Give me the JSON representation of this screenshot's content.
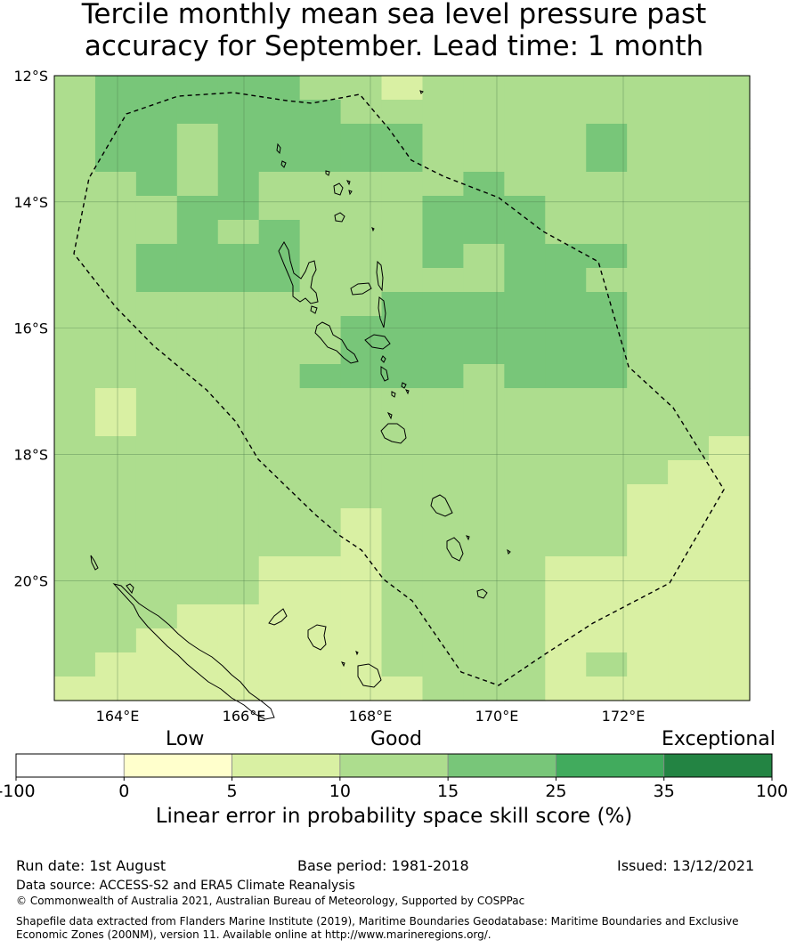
{
  "title": {
    "line1": "Tercile monthly mean sea level pressure past",
    "line2": "accuracy for September. Lead time: 1 month"
  },
  "map": {
    "lat_labels": [
      "12°S",
      "14°S",
      "16°S",
      "18°S",
      "20°S"
    ],
    "lon_labels": [
      "164°E",
      "166°E",
      "168°E",
      "170°E",
      "172°E"
    ],
    "lat_values": [
      -12,
      -14,
      -16,
      -18,
      -20
    ],
    "lon_values": [
      164,
      166,
      168,
      170,
      172
    ],
    "extent": {
      "lon": [
        163,
        174
      ],
      "lat": [
        -21.9,
        -12
      ]
    },
    "grid_cells": {
      "cell_deg": [
        0.833,
        0.556
      ],
      "classes_note": "class 1=5-10, 2=10-15, 3=15-25",
      "rows": [
        "23333322122222222",
        "23333332222222222",
        "23323333322223222",
        "23323333322223222",
        "22323222223222222",
        "22233222233322222",
        "22232322233322222",
        "22333322232333222",
        "22333322222332222",
        "22222222333333222",
        "22222223333333222",
        "22222223333333222",
        "22222233332333222",
        "21222222222222222",
        "21222222222222222",
        "22222222222222221",
        "22222222222222211",
        "22222222222222111",
        "22222221222222111",
        "22222221222222111",
        "22222111222211111",
        "22222111222211111",
        "22211111222211111",
        "22111111222211111",
        "21111111222212111",
        "11111111122211111"
      ]
    },
    "eez_boundary_note": "dashed line",
    "islands_note": "black outlines"
  },
  "colorbar": {
    "category_labels": [
      "Low",
      "Good",
      "Exceptional"
    ],
    "tick_labels": [
      "-100",
      "0",
      "5",
      "10",
      "15",
      "25",
      "35",
      "100"
    ],
    "colors": [
      "#ffffff",
      "#ffffcc",
      "#d9f0a3",
      "#addd8e",
      "#78c679",
      "#41ab5d",
      "#238443"
    ],
    "caption": "Linear error in probability space skill score (%)"
  },
  "footer": {
    "run_date": "Run date: 1st August",
    "base_period": "Base period: 1981-2018",
    "issued": "Issued: 13/12/2021",
    "data_source": "Data source: ACCESS-S2 and ERA5 Climate Reanalysis",
    "copyright": "© Commonwealth of Australia 2021, Australian Bureau of Meteorology, Supported by COSPPac",
    "shapefile_line1": "Shapefile data extracted from Flanders Marine Institute (2019), Maritime Boundaries Geodatabase: Maritime Boundaries and Exclusive",
    "shapefile_line2": "Economic Zones (200NM), version 11. Available online at http://www.marineregions.org/."
  }
}
